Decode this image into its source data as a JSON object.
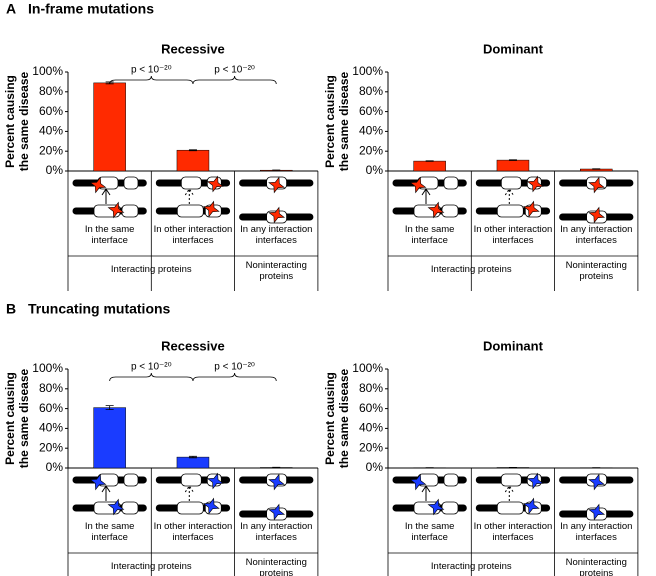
{
  "panels": [
    {
      "label": "A",
      "title": "In-frame mutations"
    },
    {
      "label": "B",
      "title": "Truncating mutations"
    }
  ],
  "chart_data": [
    {
      "type": "bar",
      "title": "Recessive",
      "ylabel": [
        "Percent causing",
        "the same disease"
      ],
      "categories": [
        "In the same interface",
        "In other interaction interfaces",
        "In any interaction interfaces"
      ],
      "values": [
        89,
        21,
        0.8
      ],
      "errors": [
        1,
        0.5,
        0.2
      ],
      "color": "#ff2a00",
      "ylim": [
        0,
        100
      ],
      "yticks": [
        {
          "value": 0,
          "label": "0%"
        },
        {
          "value": 20,
          "label": "20%"
        },
        {
          "value": 40,
          "label": "40%"
        },
        {
          "value": 60,
          "label": "60%"
        },
        {
          "value": 80,
          "label": "80%"
        },
        {
          "value": 100,
          "label": "100%"
        }
      ],
      "groups": [
        "Interacting proteins",
        "Noninteracting proteins"
      ],
      "annotations": [
        "p < 10⁻²⁰",
        "p < 10⁻²⁰"
      ]
    },
    {
      "type": "bar",
      "title": "Dominant",
      "ylabel": [
        "Percent causing",
        "the same disease"
      ],
      "categories": [
        "In the same interface",
        "In other interaction interfaces",
        "In any interaction interfaces"
      ],
      "values": [
        10,
        11,
        2
      ],
      "errors": [
        0.3,
        0.4,
        0.2
      ],
      "color": "#ff2a00",
      "ylim": [
        0,
        100
      ],
      "yticks": [
        {
          "value": 0,
          "label": "0%"
        },
        {
          "value": 20,
          "label": "20%"
        },
        {
          "value": 40,
          "label": "40%"
        },
        {
          "value": 60,
          "label": "60%"
        },
        {
          "value": 80,
          "label": "80%"
        },
        {
          "value": 100,
          "label": "100%"
        }
      ],
      "groups": [
        "Interacting proteins",
        "Noninteracting proteins"
      ]
    },
    {
      "type": "bar",
      "title": "Recessive",
      "ylabel": [
        "Percent causing",
        "the same disease"
      ],
      "categories": [
        "In the same interface",
        "In other interaction interfaces",
        "In any interaction interfaces"
      ],
      "values": [
        61,
        11,
        0.5
      ],
      "errors": [
        2,
        0.8,
        0.2
      ],
      "color": "#1a3cff",
      "ylim": [
        0,
        100
      ],
      "yticks": [
        {
          "value": 0,
          "label": "0%"
        },
        {
          "value": 20,
          "label": "20%"
        },
        {
          "value": 40,
          "label": "40%"
        },
        {
          "value": 60,
          "label": "60%"
        },
        {
          "value": 80,
          "label": "80%"
        },
        {
          "value": 100,
          "label": "100%"
        }
      ],
      "groups": [
        "Interacting proteins",
        "Noninteracting proteins"
      ],
      "annotations": [
        "p < 10⁻²⁰",
        "p < 10⁻²⁰"
      ]
    },
    {
      "type": "bar",
      "title": "Dominant",
      "ylabel": [
        "Percent causing",
        "the same disease"
      ],
      "categories": [
        "In the same interface",
        "In other interaction interfaces",
        "In any interaction interfaces"
      ],
      "values": [
        0.3,
        0.5,
        0.3
      ],
      "errors": [
        0.1,
        0.1,
        0.1
      ],
      "color": "#1a3cff",
      "ylim": [
        0,
        100
      ],
      "yticks": [
        {
          "value": 0,
          "label": "0%"
        },
        {
          "value": 20,
          "label": "20%"
        },
        {
          "value": 40,
          "label": "40%"
        },
        {
          "value": 60,
          "label": "60%"
        },
        {
          "value": 80,
          "label": "80%"
        },
        {
          "value": 100,
          "label": "100%"
        }
      ],
      "groups": [
        "Interacting proteins",
        "Noninteracting proteins"
      ]
    }
  ]
}
